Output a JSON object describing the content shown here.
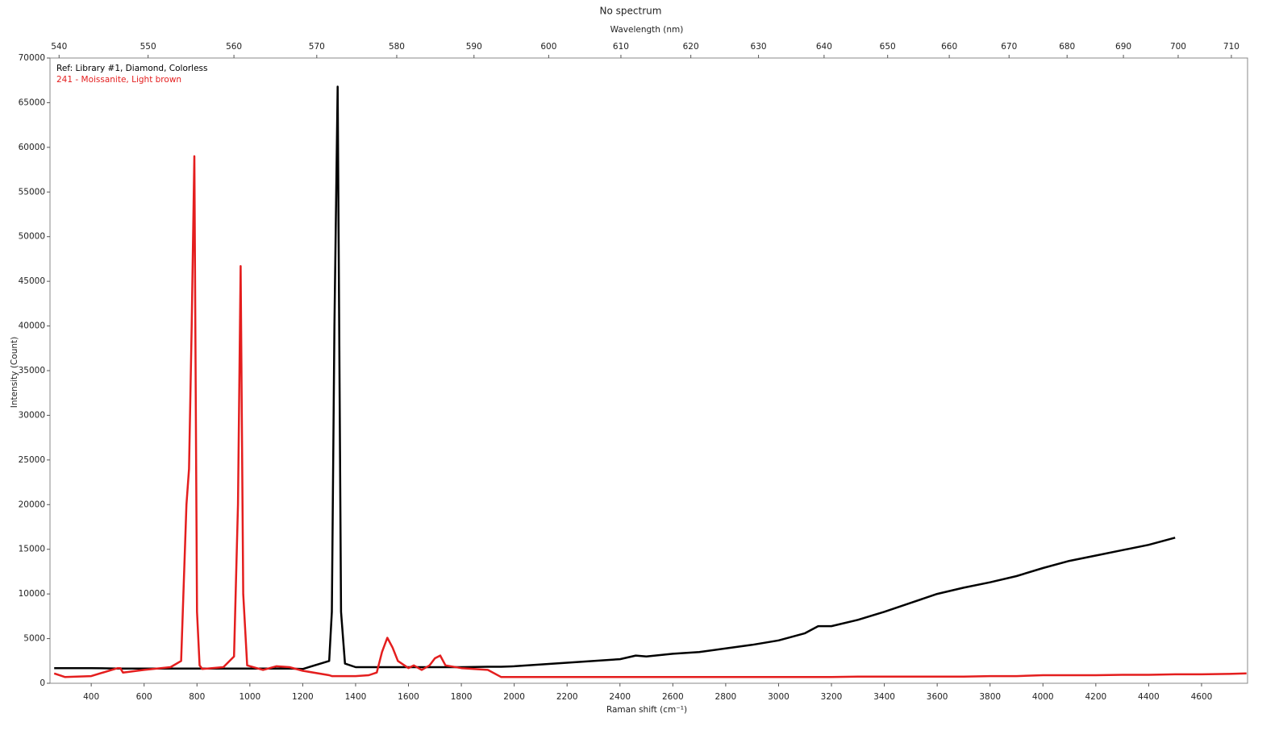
{
  "chart_data": {
    "type": "line",
    "title": "No spectrum",
    "x2label": "Wavelength (nm)",
    "xlabel": "Raman shift (cm⁻¹)",
    "ylabel": "Intensity (Count)",
    "x": [
      260,
      300,
      400,
      500,
      510,
      520,
      600,
      700,
      740,
      760,
      770,
      780,
      790,
      800,
      810,
      820,
      900,
      940,
      955,
      965,
      975,
      990,
      1050,
      1100,
      1150,
      1200,
      1300,
      1310,
      1320,
      1332,
      1345,
      1360,
      1400,
      1450,
      1480,
      1500,
      1520,
      1540,
      1560,
      1600,
      1620,
      1650,
      1680,
      1700,
      1720,
      1740,
      1800,
      1900,
      1950,
      2000,
      2200,
      2400,
      2460,
      2500,
      2600,
      2700,
      2800,
      2900,
      3000,
      3100,
      3150,
      3200,
      3300,
      3400,
      3500,
      3600,
      3700,
      3800,
      3900,
      4000,
      4100,
      4200,
      4300,
      4400,
      4500,
      4600,
      4700,
      4770
    ],
    "series": [
      {
        "name": "Ref: Library #1, Diamond, Colorless",
        "color": "#000000",
        "values": [
          1700,
          1700,
          1700,
          1650,
          1650,
          1650,
          1650,
          1650,
          1650,
          1650,
          1650,
          1650,
          1650,
          1650,
          1650,
          1650,
          1650,
          1650,
          1650,
          1650,
          1650,
          1650,
          1650,
          1650,
          1650,
          1600,
          2500,
          8000,
          40000,
          66800,
          8000,
          2200,
          1800,
          1800,
          1800,
          1800,
          1800,
          1800,
          1800,
          1800,
          1800,
          1800,
          1800,
          1800,
          1800,
          1800,
          1800,
          1850,
          1850,
          1900,
          2300,
          2700,
          3100,
          3000,
          3300,
          3500,
          3900,
          4300,
          4800,
          5600,
          6400,
          6400,
          7100,
          8000,
          9000,
          10000,
          10700,
          11300,
          12000,
          12900,
          13700,
          14300,
          14900,
          15500,
          16300,
          null,
          null,
          null
        ]
      },
      {
        "name": "241 - Moissanite, Light brown",
        "color": "#e41e1e",
        "values": [
          1100,
          700,
          800,
          1700,
          1700,
          1200,
          1500,
          1800,
          2500,
          20000,
          24000,
          40000,
          59000,
          8000,
          2000,
          1600,
          1800,
          3000,
          20000,
          46700,
          10000,
          2000,
          1500,
          1900,
          1800,
          1400,
          900,
          800,
          800,
          800,
          800,
          800,
          800,
          900,
          1200,
          3500,
          5100,
          4000,
          2500,
          1700,
          2000,
          1500,
          2000,
          2800,
          3100,
          2000,
          1700,
          1500,
          700,
          700,
          700,
          700,
          700,
          700,
          700,
          700,
          700,
          700,
          700,
          700,
          700,
          700,
          750,
          750,
          750,
          750,
          750,
          800,
          800,
          900,
          900,
          900,
          950,
          950,
          1000,
          1000,
          1050,
          1100
        ]
      }
    ],
    "xlim": [
      244,
      4774
    ],
    "xticks": [
      400,
      600,
      800,
      1000,
      1200,
      1400,
      1600,
      1800,
      2000,
      2200,
      2400,
      2600,
      2800,
      3000,
      3200,
      3400,
      3600,
      3800,
      4000,
      4200,
      4400,
      4600
    ],
    "x2lim": [
      539,
      713.1
    ],
    "x2scale": "reciprocal",
    "x2ticks": [
      540,
      550,
      560,
      570,
      580,
      590,
      600,
      610,
      620,
      630,
      640,
      650,
      660,
      670,
      680,
      690,
      700,
      710
    ],
    "ylim": [
      0,
      70000
    ],
    "yticks": [
      0,
      5000,
      10000,
      15000,
      20000,
      25000,
      30000,
      35000,
      40000,
      45000,
      50000,
      55000,
      60000,
      65000,
      70000
    ],
    "legend": "upper left"
  }
}
